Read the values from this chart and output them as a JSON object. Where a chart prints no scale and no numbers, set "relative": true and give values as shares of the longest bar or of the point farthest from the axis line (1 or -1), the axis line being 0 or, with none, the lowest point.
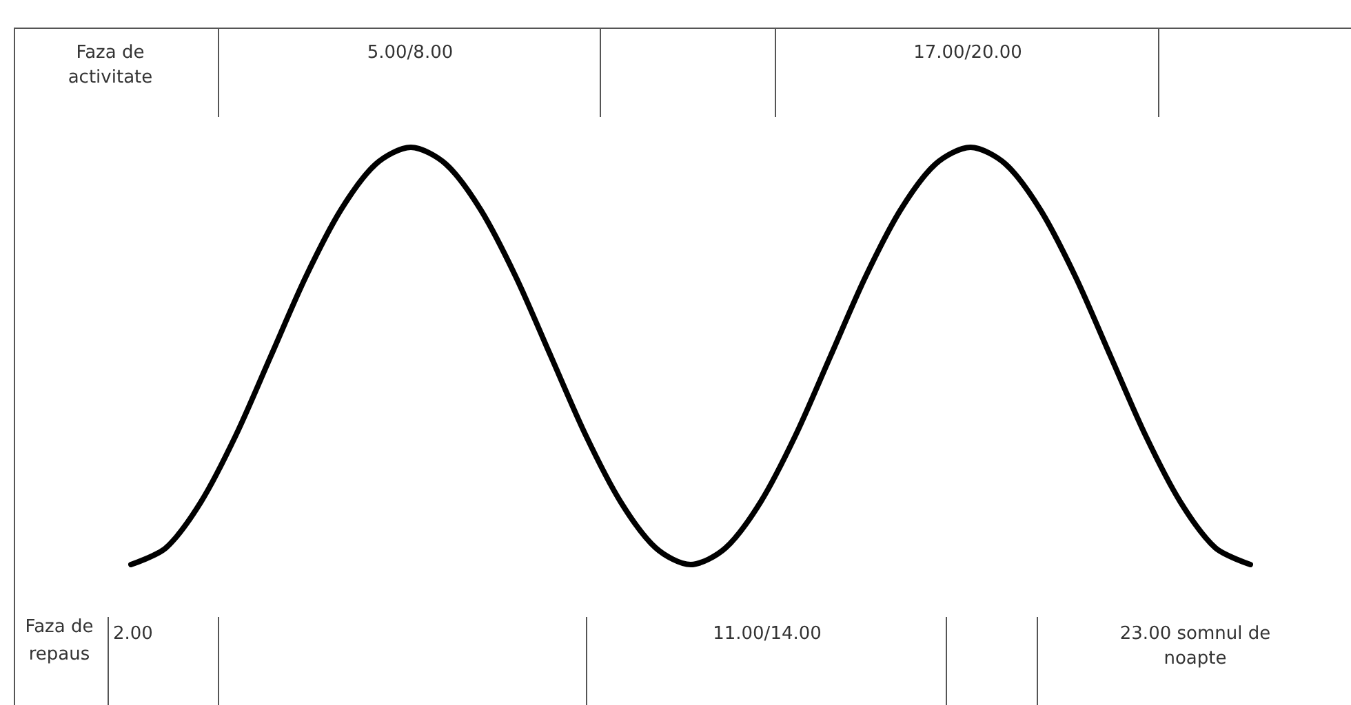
{
  "chart_data": {
    "type": "line",
    "relative": true,
    "color": "#000000",
    "categories": [
      null,
      null,
      null,
      null,
      null,
      null,
      null,
      null,
      null,
      null,
      null,
      null,
      null,
      null,
      null,
      null,
      null,
      null,
      null,
      null,
      null,
      null,
      null,
      null,
      null,
      null,
      null,
      null,
      null,
      null,
      null,
      null,
      null
    ],
    "values": [
      0,
      0.04,
      0.15,
      0.31,
      0.5,
      0.69,
      0.85,
      0.96,
      1,
      0.96,
      0.85,
      0.69,
      0.5,
      0.31,
      0.15,
      0.04,
      0,
      0.04,
      0.15,
      0.31,
      0.5,
      0.69,
      0.85,
      0.96,
      1,
      0.96,
      0.85,
      0.69,
      0.5,
      0.31,
      0.15,
      0.04,
      0
    ],
    "annotations": [
      "Faza de activitate",
      "5.00/8.00",
      "17.00/20.00",
      "Faza de repaus",
      "2.00",
      "11.00/14.00",
      "23.00 somnul de noapte"
    ]
  }
}
